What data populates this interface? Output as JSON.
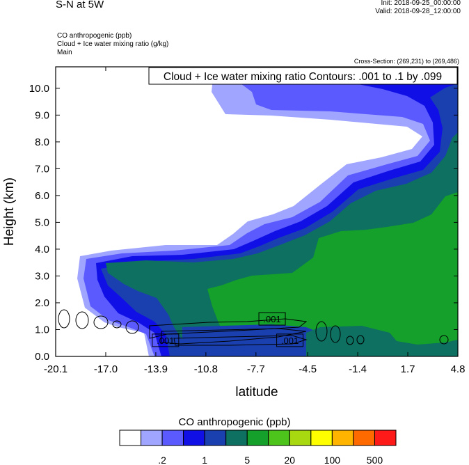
{
  "header": {
    "title": "S-N at 5W",
    "init": "Init: 2018-09-25_00:00:00",
    "valid": "Valid: 2018-09-28_12:00:00",
    "fields": [
      "CO anthropogenic   (ppb)",
      "Cloud + Ice water mixing ratio   (g/kg)",
      "Main"
    ],
    "cross_section": "Cross-Section: (269,231) to (269,486)"
  },
  "chart_data": {
    "type": "heatmap",
    "title": "S-N at 5W",
    "xlabel": "latitude",
    "ylabel": "Height (km)",
    "xlim": [
      -20.1,
      4.8
    ],
    "ylim": [
      0.0,
      10.8
    ],
    "x_ticks": [
      -20.1,
      -17.0,
      -13.9,
      -10.8,
      -7.7,
      -4.5,
      -1.4,
      1.7,
      4.8
    ],
    "x_tick_labels": [
      "-20.1",
      "-17.0",
      "-13.9",
      "-10.8",
      "-7.7",
      "-4.5",
      "-1.4",
      "1.7",
      "4.8"
    ],
    "y_ticks": [
      0,
      1,
      2,
      3,
      4,
      5,
      6,
      7,
      8,
      9,
      10
    ],
    "y_tick_labels": [
      "0.0",
      "1.0",
      "2.0",
      "3.0",
      "4.0",
      "5.0",
      "6.0",
      "7.0",
      "8.0",
      "9.0",
      "10.0"
    ],
    "contour_info": "Cloud + Ice water mixing ratio Contours: .001 to .1 by .099",
    "contour_labels": [
      {
        "text": ".001",
        "x": -13.3,
        "y": 0.6
      },
      {
        "text": ".001",
        "x": -6.7,
        "y": 1.4
      },
      {
        "text": ".001",
        "x": -5.6,
        "y": 0.6
      }
    ],
    "colorbar": {
      "title": "CO anthropogenic  (ppb)",
      "colors": [
        "#ffffff",
        "#a0a5ff",
        "#5a5aff",
        "#1010e6",
        "#1a40b0",
        "#0d7060",
        "#14a02a",
        "#4cc41c",
        "#a8d810",
        "#ffff00",
        "#ffb400",
        "#ff6a00",
        "#ff1a1a"
      ],
      "tick_labels": [
        ".2",
        "1",
        "5",
        "20",
        "100",
        "500"
      ]
    },
    "legend_position": "bottom"
  }
}
